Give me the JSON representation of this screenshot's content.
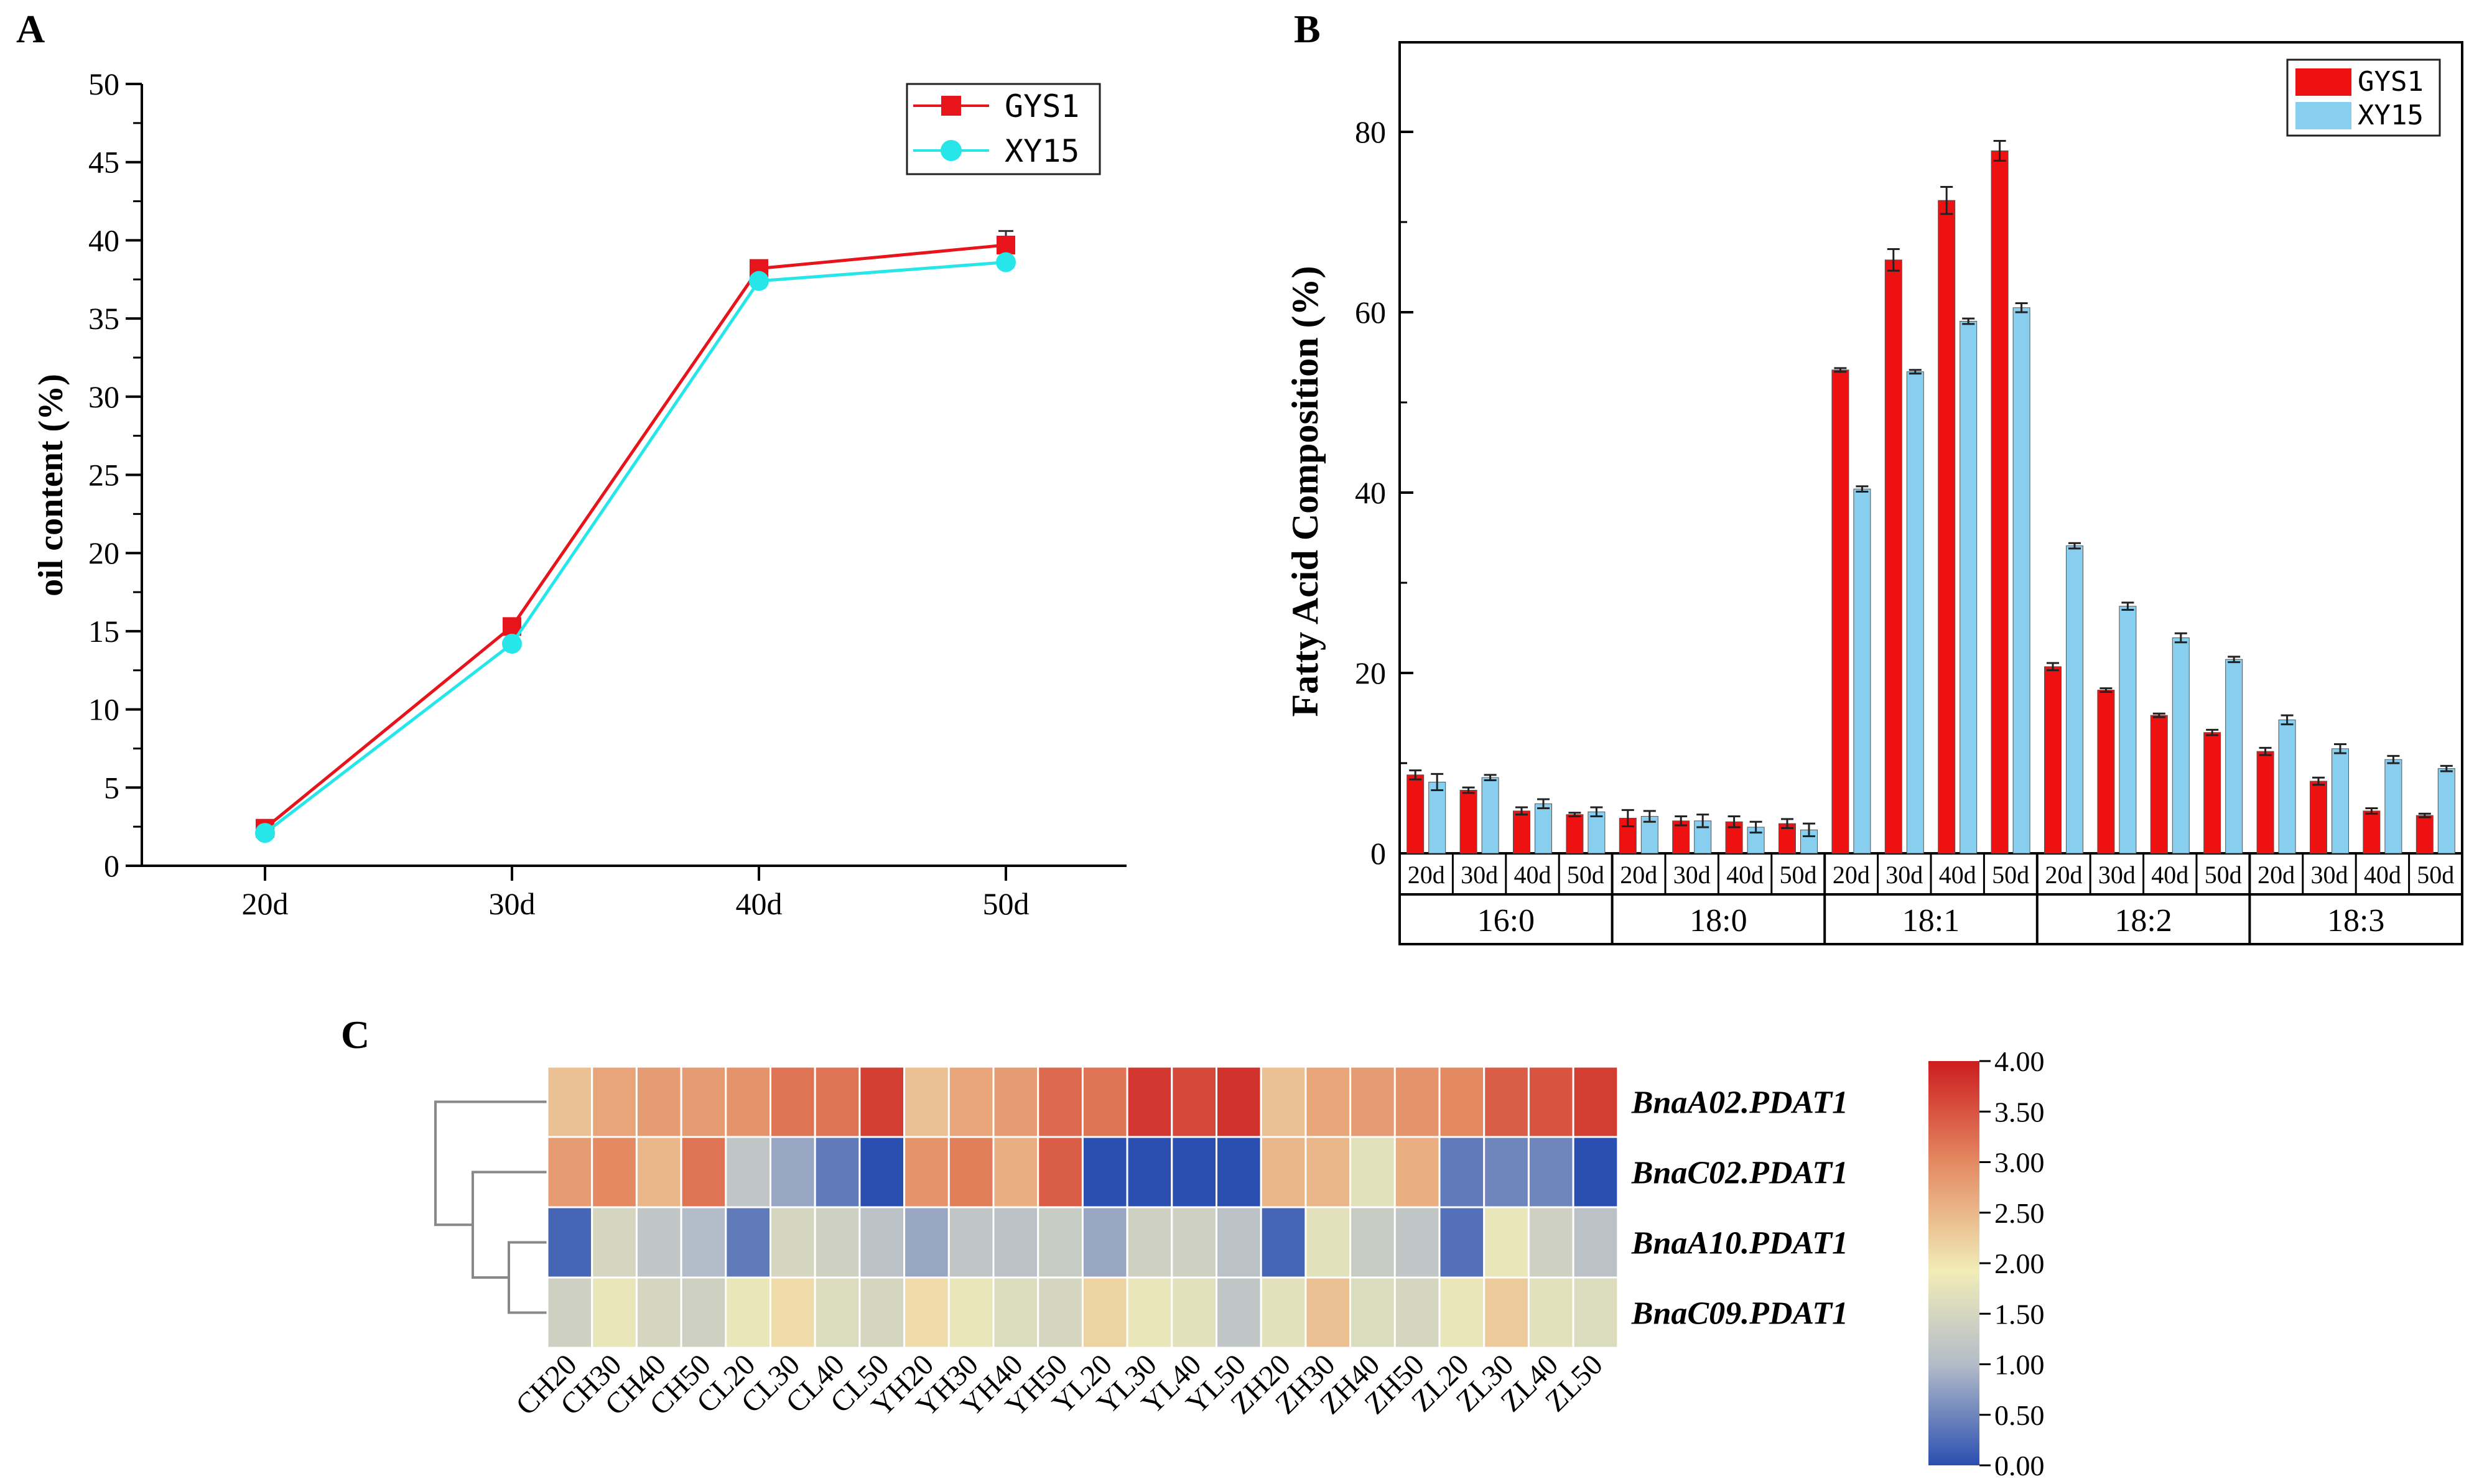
{
  "chart_data": [
    {
      "panel": "A",
      "type": "line",
      "categories": [
        "20d",
        "30d",
        "40d",
        "50d"
      ],
      "ylabel": "oil content (%)",
      "xlabel": "",
      "ylim": [
        0,
        50
      ],
      "yticks": [
        "0",
        "5",
        "10",
        "15",
        "20",
        "25",
        "30",
        "35",
        "40",
        "45",
        "50"
      ],
      "series": [
        {
          "name": "GYS1",
          "color": "#e8141b",
          "marker": "square",
          "values": [
            2.4,
            15.3,
            38.2,
            39.7
          ],
          "errors": [
            0.2,
            0.3,
            0.3,
            0.9
          ]
        },
        {
          "name": "XY15",
          "color": "#27e6ea",
          "marker": "circle",
          "values": [
            2.1,
            14.2,
            37.4,
            38.6
          ],
          "errors": [
            0.1,
            0.2,
            0.2,
            0.3
          ]
        }
      ]
    },
    {
      "panel": "B",
      "type": "bar",
      "ylabel": "Fatty Acid Composition (%)",
      "ylim": [
        0,
        90
      ],
      "yticks": [
        "0",
        "20",
        "40",
        "60",
        "80"
      ],
      "groups": [
        "16:0",
        "18:0",
        "18:1",
        "18:2",
        "18:3"
      ],
      "subcategories": [
        "20d",
        "30d",
        "40d",
        "50d"
      ],
      "series": [
        {
          "name": "GYS1",
          "color": "#ee1111",
          "values": [
            [
              8.7,
              7.0,
              4.7,
              4.3
            ],
            [
              3.9,
              3.6,
              3.5,
              3.3
            ],
            [
              53.6,
              65.8,
              72.4,
              77.9
            ],
            [
              20.7,
              18.1,
              15.3,
              13.4
            ],
            [
              11.3,
              8.0,
              4.7,
              4.2
            ]
          ],
          "errors": [
            [
              0.5,
              0.3,
              0.4,
              0.2
            ],
            [
              0.9,
              0.5,
              0.6,
              0.5
            ],
            [
              0.2,
              1.2,
              1.5,
              1.1
            ],
            [
              0.4,
              0.2,
              0.2,
              0.3
            ],
            [
              0.4,
              0.4,
              0.3,
              0.2
            ]
          ]
        },
        {
          "name": "XY15",
          "color": "#87ceef",
          "values": [
            [
              7.9,
              8.4,
              5.5,
              4.6
            ],
            [
              4.1,
              3.6,
              2.9,
              2.6
            ],
            [
              40.4,
              53.4,
              59.0,
              60.5
            ],
            [
              34.1,
              27.4,
              23.9,
              21.5
            ],
            [
              14.8,
              11.6,
              10.4,
              9.4
            ]
          ],
          "errors": [
            [
              0.9,
              0.3,
              0.5,
              0.5
            ],
            [
              0.6,
              0.7,
              0.6,
              0.7
            ],
            [
              0.3,
              0.2,
              0.3,
              0.5
            ],
            [
              0.3,
              0.4,
              0.5,
              0.3
            ],
            [
              0.5,
              0.5,
              0.4,
              0.3
            ]
          ]
        }
      ]
    },
    {
      "panel": "C",
      "type": "heatmap",
      "columns": [
        "CH20",
        "CH30",
        "CH40",
        "CH50",
        "CL20",
        "CL30",
        "CL40",
        "CL50",
        "YH20",
        "YH30",
        "YH40",
        "YH50",
        "YL20",
        "YL30",
        "YL40",
        "YL50",
        "ZH20",
        "ZH30",
        "ZH40",
        "ZH50",
        "ZL20",
        "ZL30",
        "ZL40",
        "ZL50"
      ],
      "rows": [
        "BnaA02.PDAT1",
        "BnaC02.PDAT1",
        "BnaA10.PDAT1",
        "BnaC09.PDAT1"
      ],
      "values": [
        [
          2.4,
          2.7,
          2.8,
          2.8,
          2.9,
          3.2,
          3.2,
          3.7,
          2.4,
          2.7,
          2.8,
          3.3,
          3.2,
          3.75,
          3.6,
          3.8,
          2.4,
          2.7,
          2.8,
          2.9,
          3.0,
          3.4,
          3.5,
          3.7
        ],
        [
          2.8,
          3.0,
          2.5,
          3.2,
          1.2,
          0.8,
          0.4,
          0.0,
          2.9,
          3.1,
          2.6,
          3.4,
          0.0,
          0.0,
          0.0,
          0.0,
          2.5,
          2.5,
          1.7,
          2.6,
          0.4,
          0.5,
          0.5,
          0.0
        ],
        [
          0.2,
          1.5,
          1.2,
          1.0,
          0.4,
          1.5,
          1.4,
          1.1,
          0.8,
          1.2,
          1.1,
          1.3,
          0.8,
          1.4,
          1.4,
          1.1,
          0.2,
          1.7,
          1.3,
          1.2,
          0.3,
          1.8,
          1.4,
          1.1
        ],
        [
          1.4,
          1.8,
          1.5,
          1.4,
          1.8,
          2.1,
          1.6,
          1.5,
          2.1,
          1.8,
          1.6,
          1.5,
          2.2,
          1.8,
          1.7,
          1.2,
          1.7,
          2.4,
          1.6,
          1.5,
          1.8,
          2.3,
          1.7,
          1.6
        ]
      ],
      "colorbar_range": [
        0,
        4
      ],
      "colorbar_ticks": [
        "4.00",
        "3.50",
        "3.00",
        "2.50",
        "2.00",
        "1.50",
        "1.00",
        "0.50",
        "0.00"
      ],
      "dendrogram": "rows",
      "colors": {
        "low": "#2b4fb0",
        "mid": "#f1ecb8",
        "high": "#cc1d1f"
      }
    }
  ],
  "panel_labels": {
    "a": "A",
    "b": "B",
    "c": "C"
  }
}
